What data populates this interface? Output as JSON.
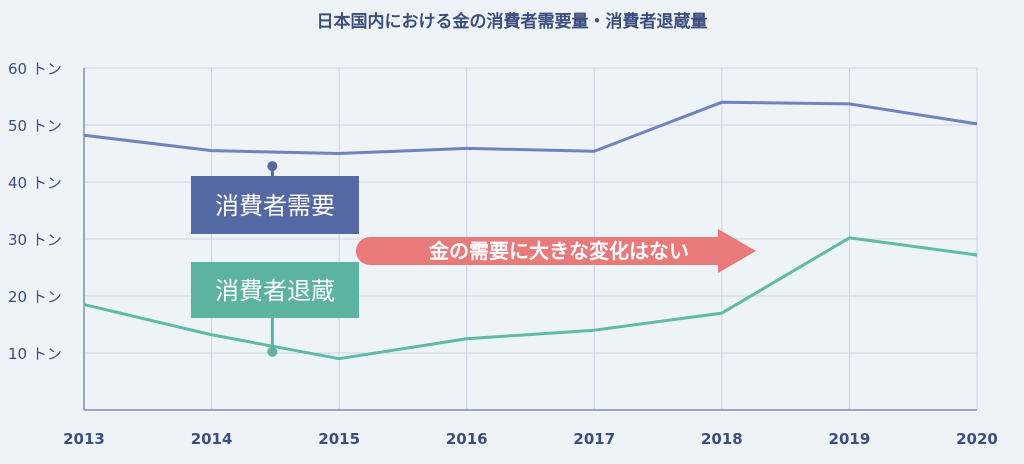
{
  "chart_data": {
    "type": "line",
    "title": "日本国内における金の消費者需要量・消費者退蔵量",
    "x": [
      "2013",
      "2014",
      "2015",
      "2016",
      "2017",
      "2018",
      "2019",
      "2020"
    ],
    "ylim": [
      0,
      60
    ],
    "yticks": [
      10,
      20,
      30,
      40,
      50,
      60
    ],
    "ytick_labels": [
      "10 トン",
      "20 トン",
      "30 トン",
      "40 トン",
      "50 トン",
      "60 トン"
    ],
    "grid": true,
    "series": [
      {
        "name": "消費者需要",
        "color": "#6f84bf",
        "label_bg": "#5468a4",
        "values": [
          48.2,
          45.5,
          45.0,
          45.9,
          45.4,
          54.0,
          53.7,
          50.2
        ]
      },
      {
        "name": "消費者退蔵",
        "color": "#5fbaa7",
        "label_bg": "#5cb3a2",
        "values": [
          18.5,
          13.2,
          9.0,
          12.5,
          14.0,
          17.0,
          30.2,
          27.2
        ]
      }
    ],
    "annotation": {
      "text": "金の需要に大きな変化はない",
      "color": "#ea7a7a"
    }
  }
}
